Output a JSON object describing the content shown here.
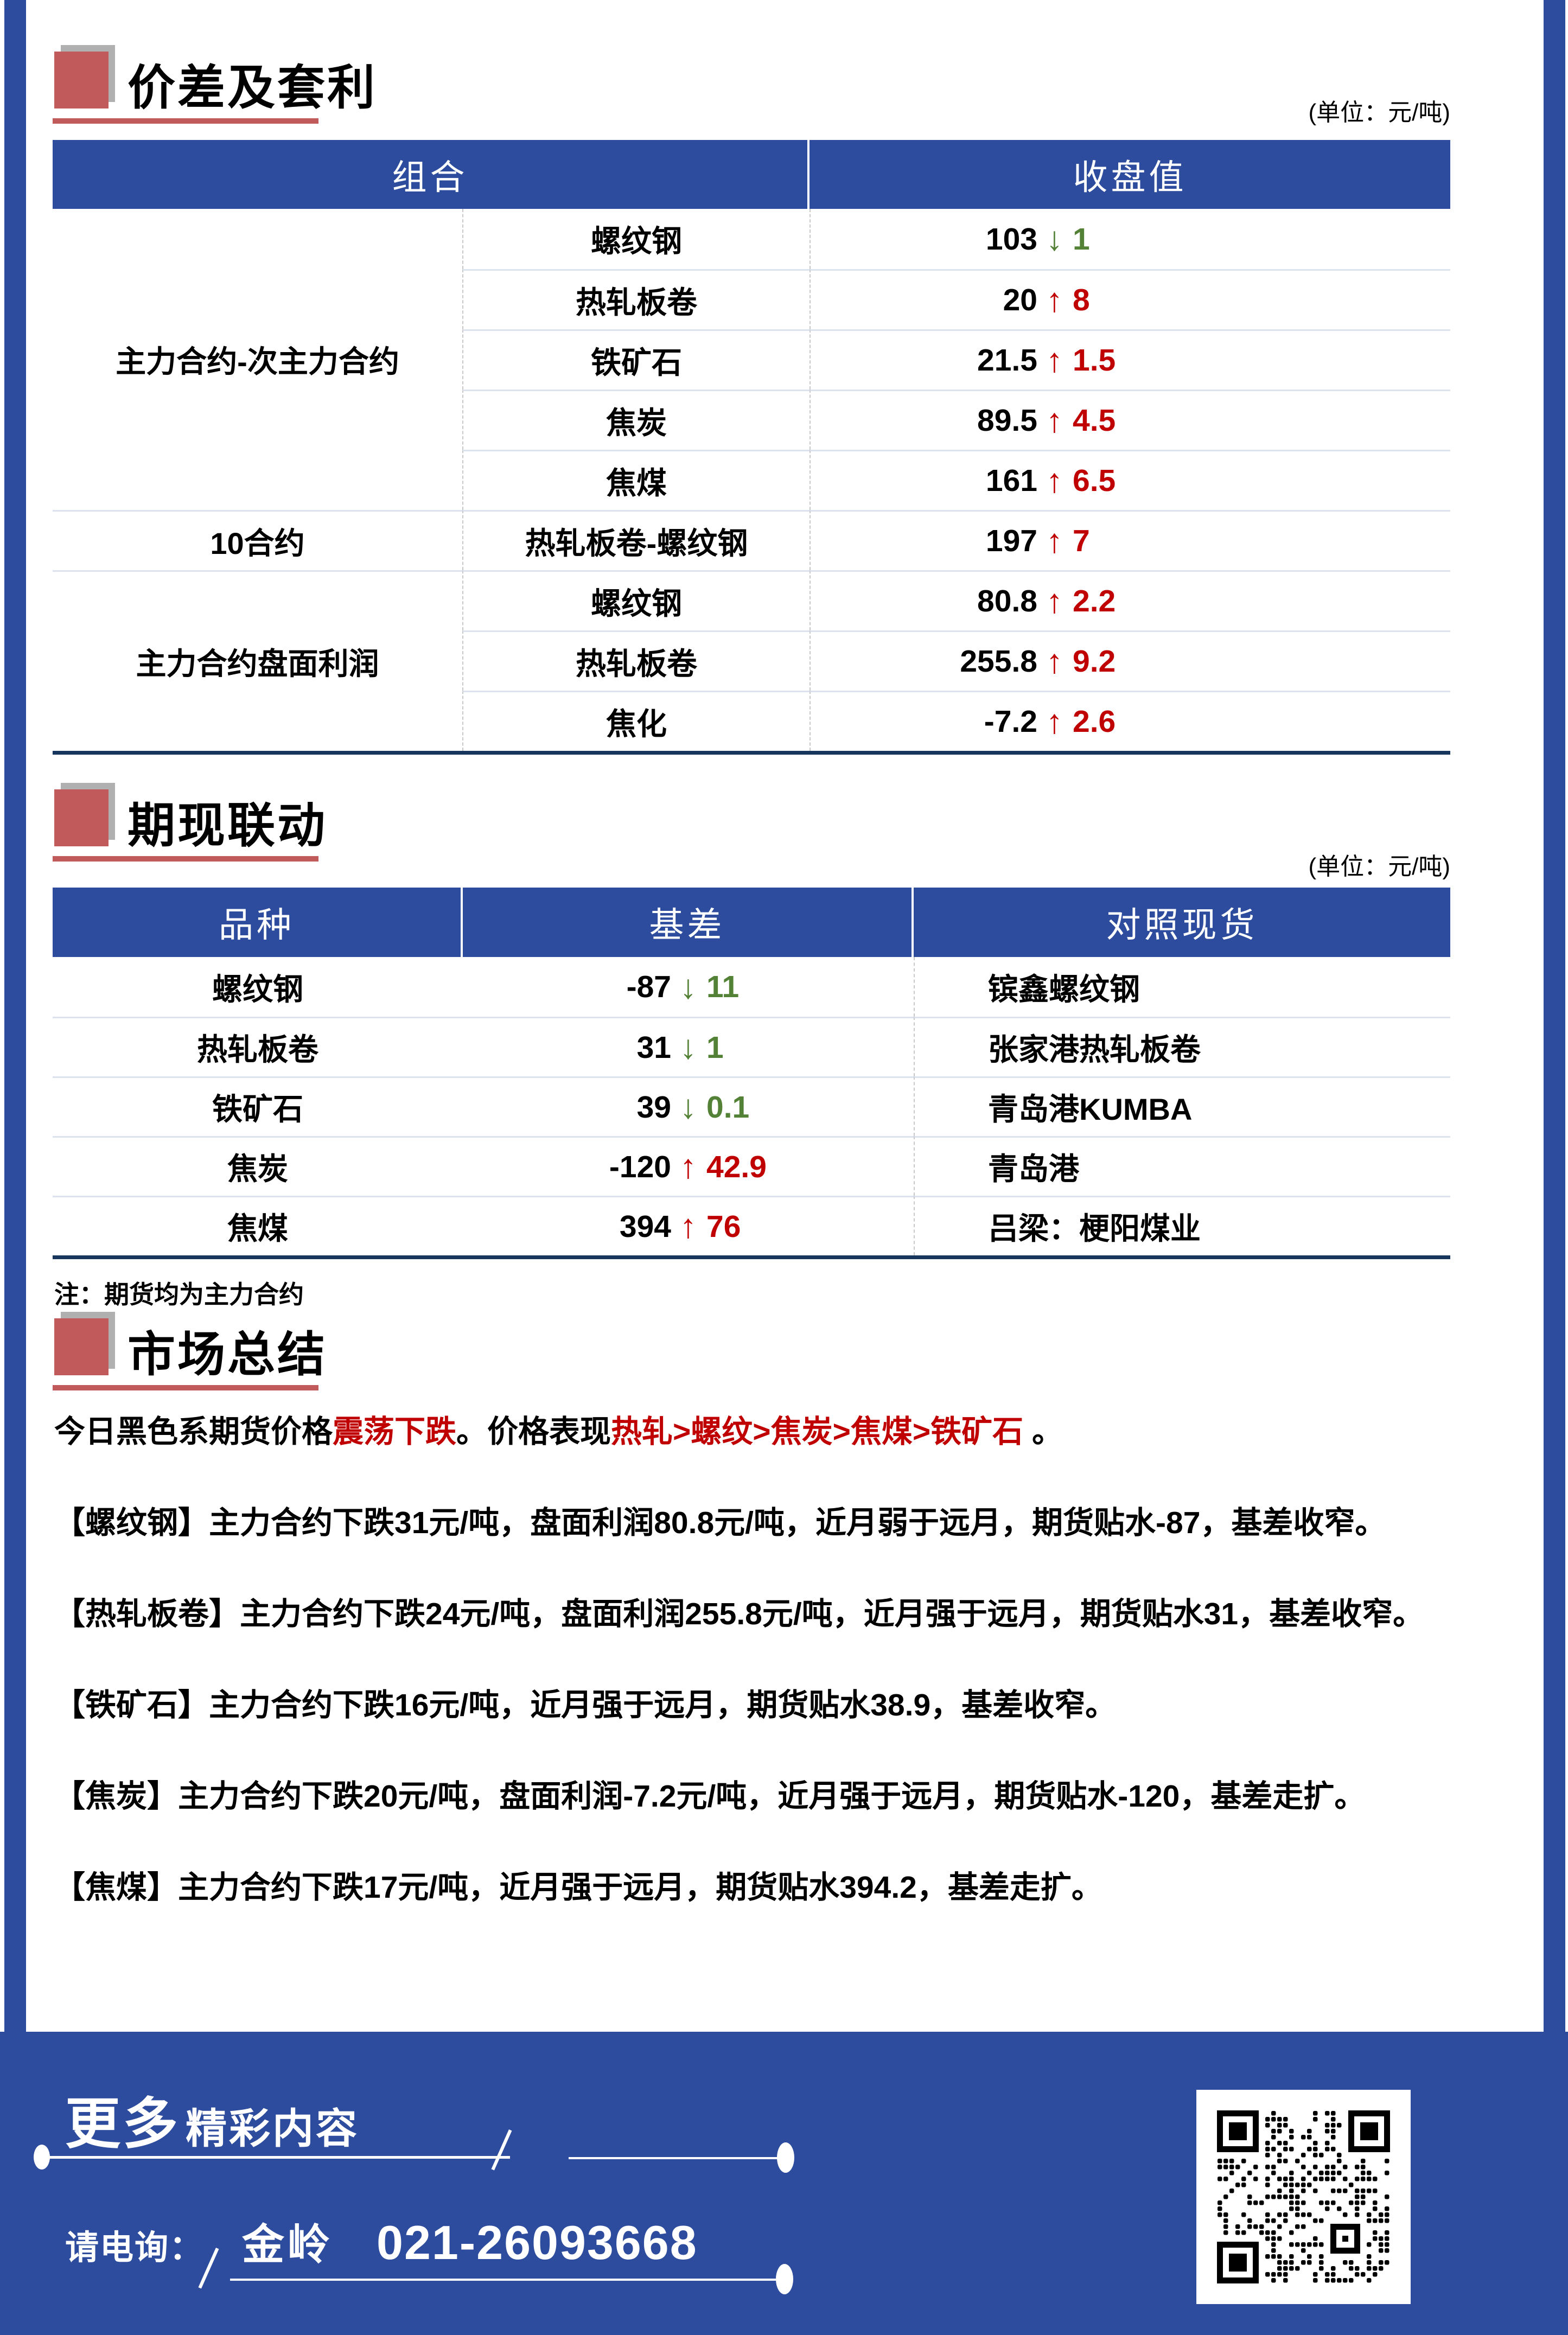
{
  "colors": {
    "brand_blue": "#2d4c9d",
    "navy_rule": "#17365d",
    "brick_red_accent": "#c15b5b",
    "up_red": "#c00000",
    "down_green": "#538135"
  },
  "section1": {
    "title": "价差及套利",
    "unit_note": "(单位：元/吨)",
    "table": {
      "headers": [
        "组合",
        "收盘值"
      ],
      "groups": [
        {
          "label": "主力合约-次主力合约",
          "rows": [
            {
              "item": "螺纹钢",
              "value": "103",
              "dir": "down",
              "change": "1"
            },
            {
              "item": "热轧板卷",
              "value": "20",
              "dir": "up",
              "change": "8"
            },
            {
              "item": "铁矿石",
              "value": "21.5",
              "dir": "up",
              "change": "1.5"
            },
            {
              "item": "焦炭",
              "value": "89.5",
              "dir": "up",
              "change": "4.5"
            },
            {
              "item": "焦煤",
              "value": "161",
              "dir": "up",
              "change": "6.5"
            }
          ]
        },
        {
          "label": "10合约",
          "rows": [
            {
              "item": "热轧板卷-螺纹钢",
              "value": "197",
              "dir": "up",
              "change": "7"
            }
          ]
        },
        {
          "label": "主力合约盘面利润",
          "rows": [
            {
              "item": "螺纹钢",
              "value": "80.8",
              "dir": "up",
              "change": "2.2"
            },
            {
              "item": "热轧板卷",
              "value": "255.8",
              "dir": "up",
              "change": "9.2"
            },
            {
              "item": "焦化",
              "value": "-7.2",
              "dir": "up",
              "change": "2.6"
            }
          ]
        }
      ]
    }
  },
  "section2": {
    "title": "期现联动",
    "unit_note": "(单位：元/吨)",
    "table": {
      "headers": [
        "品种",
        "基差",
        "对照现货"
      ],
      "rows": [
        {
          "item": "螺纹钢",
          "value": "-87",
          "dir": "down",
          "change": "11",
          "spot": "镔鑫螺纹钢"
        },
        {
          "item": "热轧板卷",
          "value": "31",
          "dir": "down",
          "change": "1",
          "spot": "张家港热轧板卷"
        },
        {
          "item": "铁矿石",
          "value": "39",
          "dir": "down",
          "change": "0.1",
          "spot": "青岛港KUMBA"
        },
        {
          "item": "焦炭",
          "value": "-120",
          "dir": "up",
          "change": "42.9",
          "spot": "青岛港"
        },
        {
          "item": "焦煤",
          "value": "394",
          "dir": "up",
          "change": "76",
          "spot": "吕梁：梗阳煤业"
        }
      ]
    },
    "note": "注：期货均为主力合约"
  },
  "section3": {
    "title": "市场总结",
    "p1": {
      "seg0": "今日黑色系期货价格",
      "seg1": "震荡下跌",
      "seg2": "。价格表现",
      "seg3": "热轧>螺纹>焦炭>焦煤>铁矿石",
      "seg4": " 。"
    },
    "p2": "【螺纹钢】主力合约下跌31元/吨，盘面利润80.8元/吨，近月弱于远月，期货贴水-87，基差收窄。",
    "p3": "【热轧板卷】主力合约下跌24元/吨，盘面利润255.8元/吨，近月强于远月，期货贴水31，基差收窄。",
    "p4": "【铁矿石】主力合约下跌16元/吨，近月强于远月，期货贴水38.9，基差收窄。",
    "p5": "【焦炭】主力合约下跌20元/吨，盘面利润-7.2元/吨，近月强于远月，期货贴水-120，基差走扩。",
    "p6": "【焦煤】主力合约下跌17元/吨，近月强于远月，期货贴水394.2，基差走扩。"
  },
  "footer": {
    "more_big": "更多",
    "more_rest": "精彩内容",
    "contact_label": "请电询：",
    "contact_name": "金岭",
    "phone": "021-26093668"
  }
}
